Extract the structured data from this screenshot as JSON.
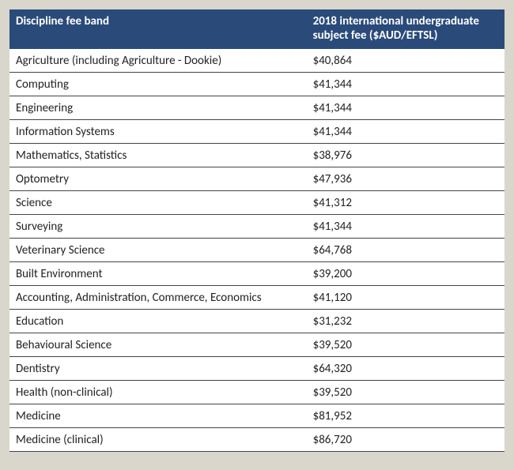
{
  "table": {
    "header_bg": "#2a4a7a",
    "header_fg": "#ffffff",
    "row_border": "#444444",
    "bg": "#ffffff",
    "page_bg": "#d9d7cb",
    "font_size_pt": 11,
    "columns": [
      {
        "label": "Discipline fee band",
        "key": "discipline",
        "width_pct": 60
      },
      {
        "label": "2018 international undergraduate subject fee ($AUD/EFTSL)",
        "key": "fee",
        "width_pct": 40
      }
    ],
    "rows": [
      {
        "discipline": "Agriculture (including Agriculture - Dookie)",
        "fee": "$40,864"
      },
      {
        "discipline": "Computing",
        "fee": "$41,344"
      },
      {
        "discipline": "Engineering",
        "fee": "$41,344"
      },
      {
        "discipline": "Information Systems",
        "fee": "$41,344"
      },
      {
        "discipline": "Mathematics, Statistics",
        "fee": "$38,976"
      },
      {
        "discipline": "Optometry",
        "fee": "$47,936"
      },
      {
        "discipline": "Science",
        "fee": "$41,312"
      },
      {
        "discipline": "Surveying",
        "fee": "$41,344"
      },
      {
        "discipline": "Veterinary Science",
        "fee": "$64,768"
      },
      {
        "discipline": "Built Environment",
        "fee": "$39,200"
      },
      {
        "discipline": "Accounting, Administration, Commerce, Economics",
        "fee": "$41,120"
      },
      {
        "discipline": "Education",
        "fee": "$31,232"
      },
      {
        "discipline": "Behavioural Science",
        "fee": "$39,520"
      },
      {
        "discipline": "Dentistry",
        "fee": "$64,320"
      },
      {
        "discipline": "Health (non-clinical)",
        "fee": "$39,520"
      },
      {
        "discipline": "Medicine",
        "fee": "$81,952"
      },
      {
        "discipline": "Medicine (clinical)",
        "fee": "$86,720"
      }
    ]
  }
}
